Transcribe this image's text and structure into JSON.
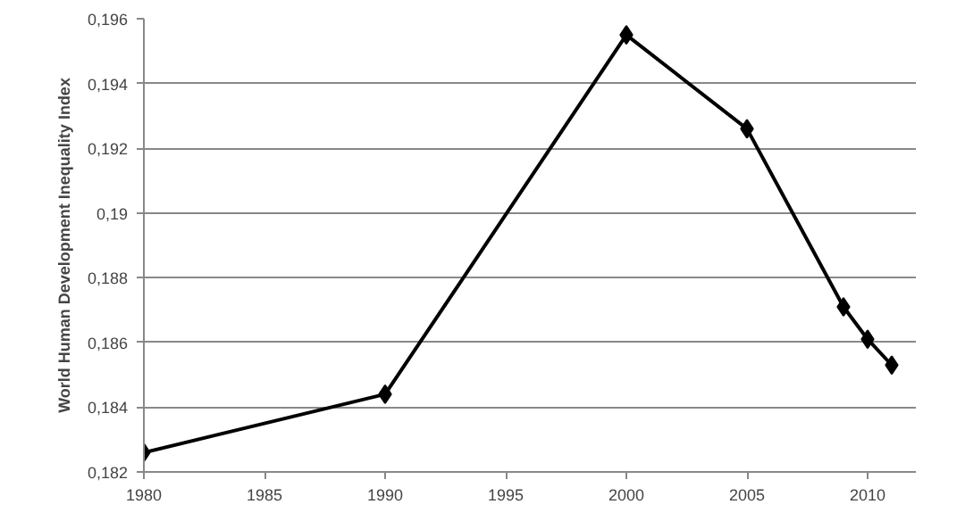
{
  "chart_data": {
    "type": "line",
    "ylabel": "World Human Development Inequality Index",
    "x": [
      1980,
      1990,
      2000,
      2005,
      2009,
      2010,
      2011
    ],
    "series": [
      {
        "color": "#000000",
        "values": [
          0.1826,
          0.1844,
          0.1955,
          0.1926,
          0.1871,
          0.1861,
          0.1853
        ]
      }
    ],
    "xlim": [
      1980,
      2012
    ],
    "xticks": [
      1980,
      1985,
      1990,
      1995,
      2000,
      2005,
      2010
    ],
    "ylim": [
      0.182,
      0.196
    ],
    "yticks": [
      {
        "value": 0.182,
        "label": "0,182"
      },
      {
        "value": 0.184,
        "label": "0,184"
      },
      {
        "value": 0.186,
        "label": "0,186"
      },
      {
        "value": 0.188,
        "label": "0,188"
      },
      {
        "value": 0.19,
        "label": "0,19"
      },
      {
        "value": 0.192,
        "label": "0,192"
      },
      {
        "value": 0.194,
        "label": "0,194"
      },
      {
        "value": 0.196,
        "label": "0,196"
      }
    ],
    "grid": "y",
    "marker": "diamond",
    "line_style": "solid"
  }
}
